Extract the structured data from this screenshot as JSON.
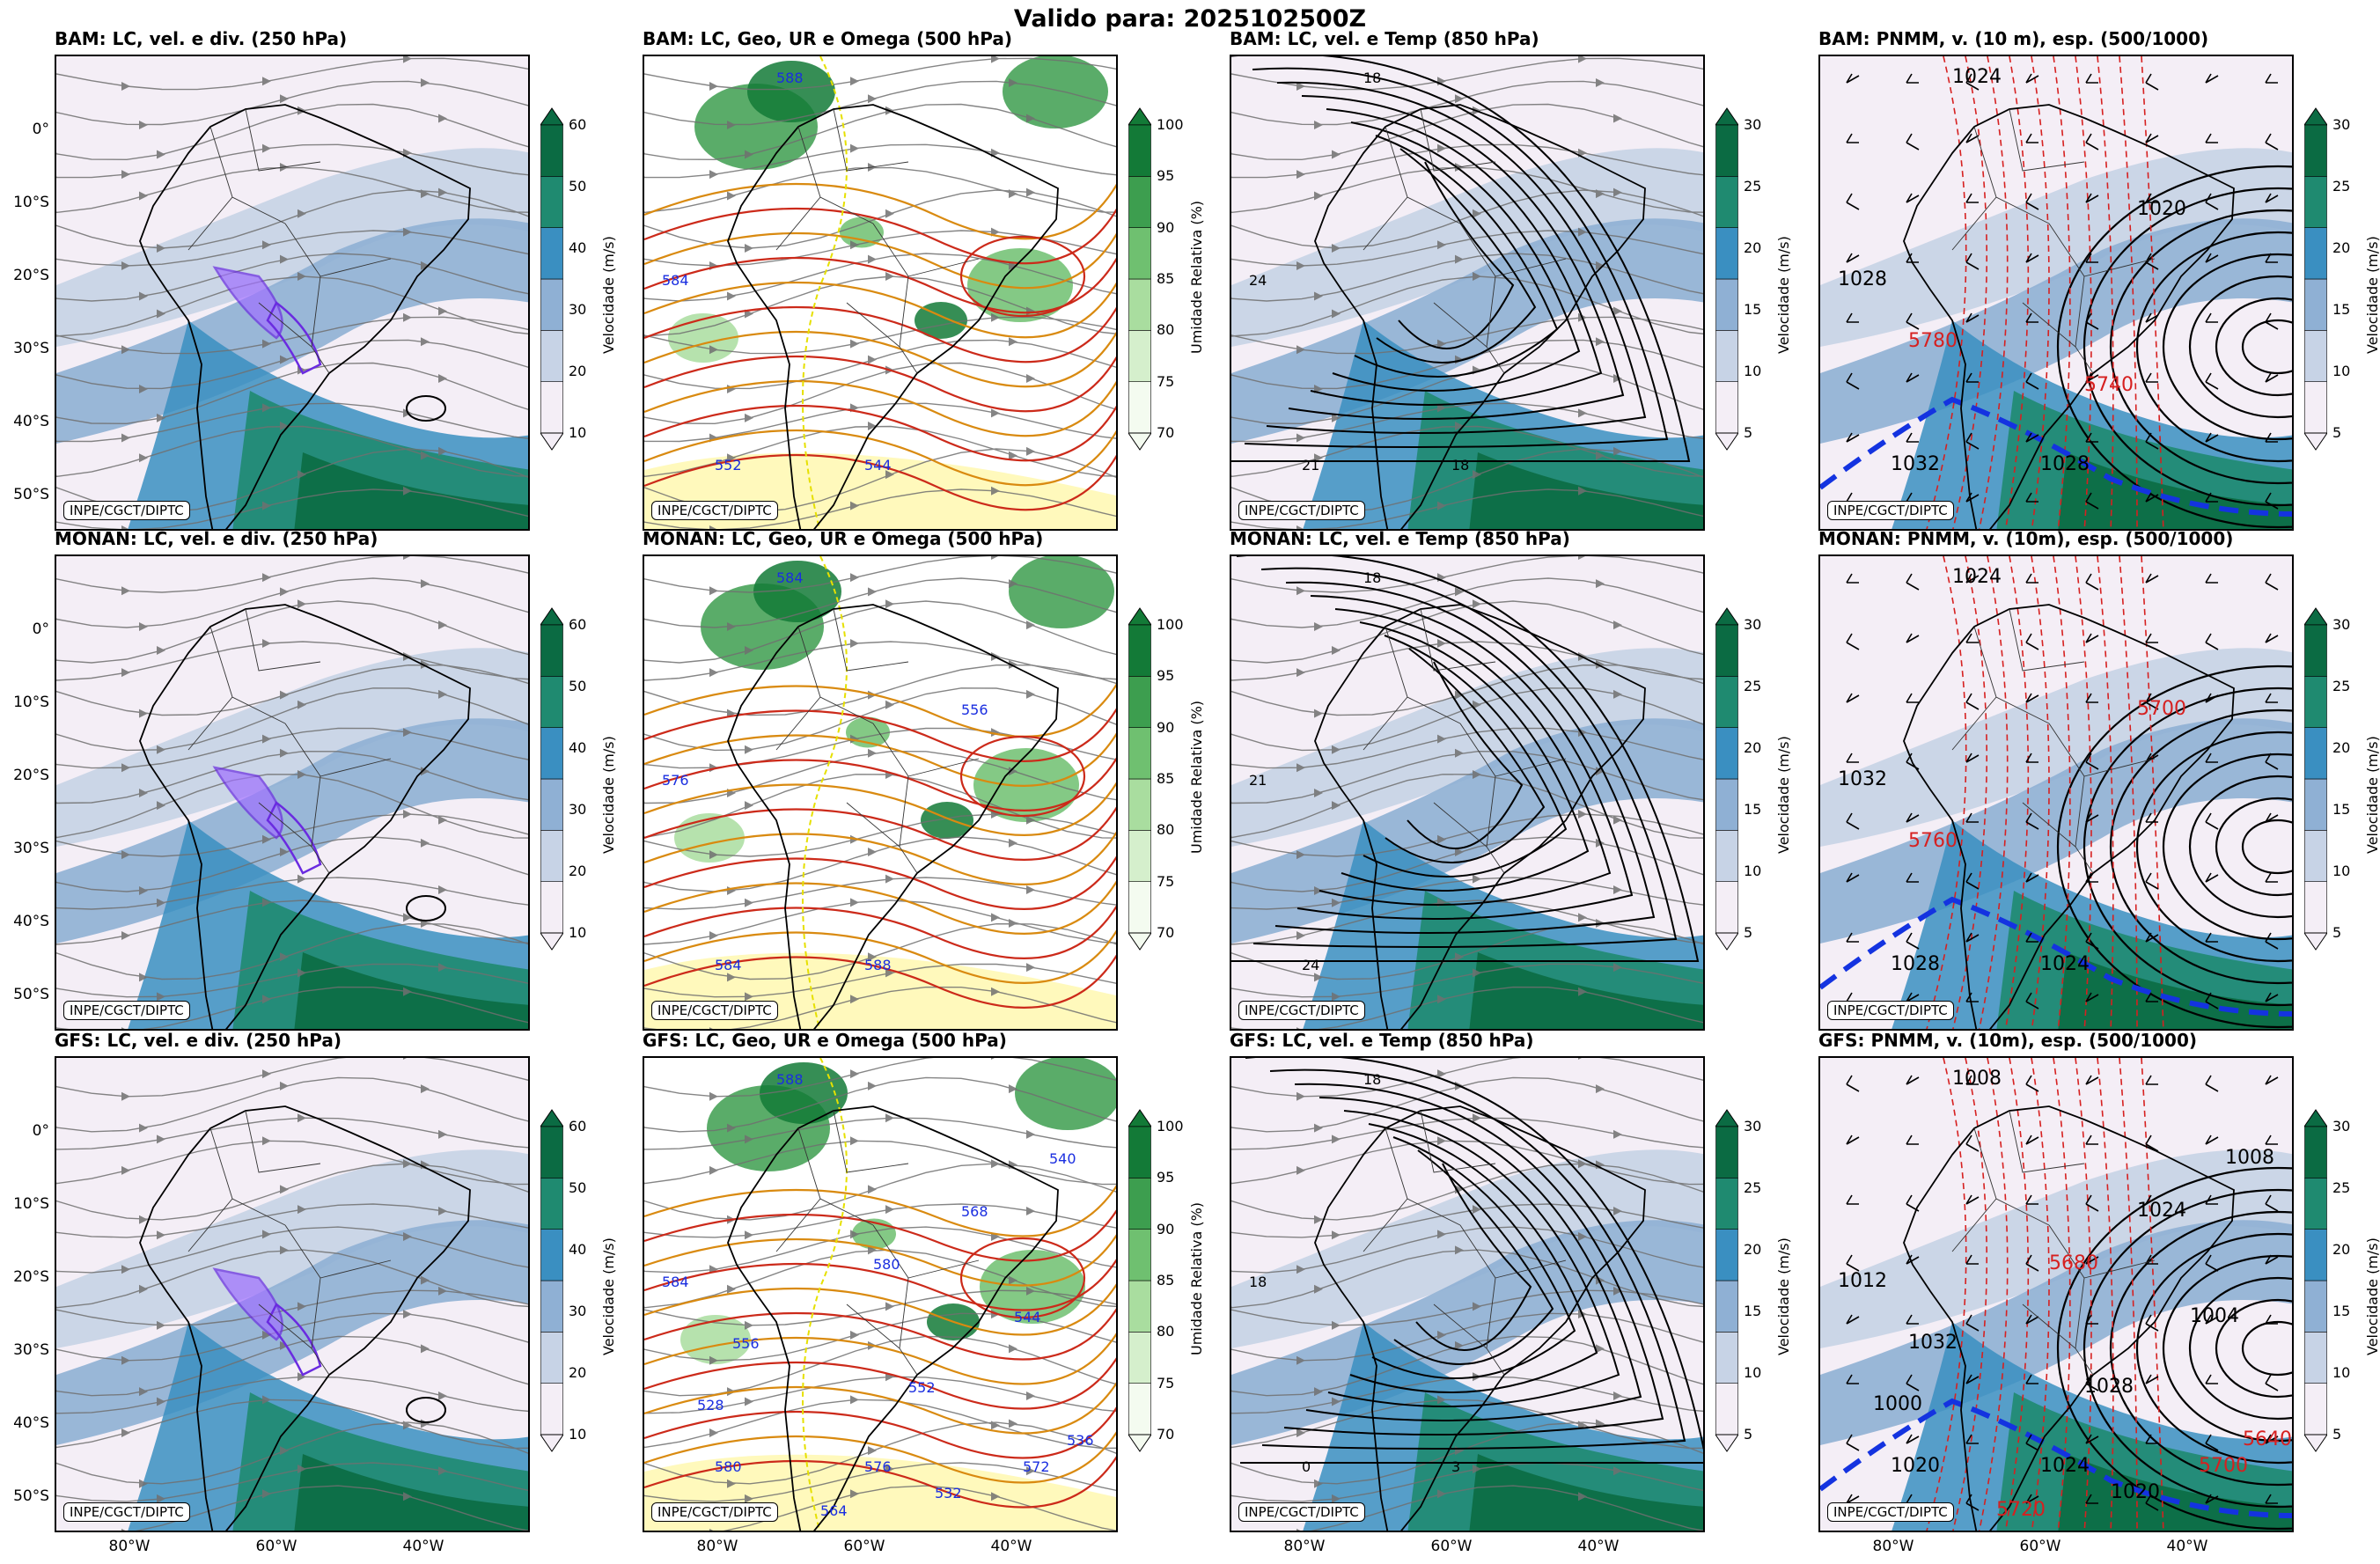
{
  "suptitle": "Valido para: 2025102500Z",
  "credit": "INPE/CGCT/DIPTC",
  "y_ticks": [
    "0°",
    "10°S",
    "20°S",
    "30°S",
    "40°S",
    "50°S"
  ],
  "x_ticks": [
    "80°W",
    "60°W",
    "40°W"
  ],
  "colorbars": {
    "speed250": {
      "label": "Velocidade (m/s)",
      "ticks": [
        "10",
        "20",
        "30",
        "40",
        "50",
        "60"
      ],
      "colors": [
        "#f4eef6",
        "#c7d3e6",
        "#8fb0d4",
        "#3a8fc1",
        "#1f8a70",
        "#0b6b43"
      ]
    },
    "rh500": {
      "label": "Umidade Relativa (%)",
      "ticks": [
        "70",
        "75",
        "80",
        "85",
        "90",
        "95",
        "100"
      ],
      "colors": [
        "#f4fbf0",
        "#d5efcc",
        "#a9dd9f",
        "#6fc070",
        "#3d9e4f",
        "#137a37"
      ]
    },
    "speed850": {
      "label": "Velocidade (m/s)",
      "ticks": [
        "5",
        "10",
        "15",
        "20",
        "25",
        "30"
      ],
      "colors": [
        "#f4eef6",
        "#c7d3e6",
        "#8fb0d4",
        "#3a8fc1",
        "#1f8a70",
        "#0b6b43"
      ]
    },
    "pnmm": {
      "label": "Velocidade (m/s)",
      "ticks": [
        "5",
        "10",
        "15",
        "20",
        "25",
        "30"
      ],
      "colors": [
        "#f4eef6",
        "#c7d3e6",
        "#8fb0d4",
        "#3a8fc1",
        "#1f8a70",
        "#0b6b43"
      ]
    }
  },
  "panels": [
    {
      "title": "BAM: LC, vel. e div. (250 hPa)",
      "type": "speed250"
    },
    {
      "title": "BAM: LC, Geo, UR e Omega (500 hPa)",
      "type": "rh500"
    },
    {
      "title": "BAM: LC, vel. e Temp (850 hPa)",
      "type": "speed850"
    },
    {
      "title": "BAM: PNMM, v. (10 m), esp. (500/1000)",
      "type": "pnmm"
    },
    {
      "title": "MONAN: LC, vel. e div. (250 hPa)",
      "type": "speed250"
    },
    {
      "title": "MONAN: LC, Geo, UR e Omega (500 hPa)",
      "type": "rh500"
    },
    {
      "title": "MONAN: LC, vel. e Temp (850 hPa)",
      "type": "speed850"
    },
    {
      "title": "MONAN: PNMM, v. (10m), esp. (500/1000)",
      "type": "pnmm"
    },
    {
      "title": "GFS: LC, vel. e div. (250 hPa)",
      "type": "speed250"
    },
    {
      "title": "GFS: LC, Geo, UR e Omega (500 hPa)",
      "type": "rh500"
    },
    {
      "title": "GFS: LC, vel. e Temp (850 hPa)",
      "type": "speed850"
    },
    {
      "title": "GFS: PNMM, v. (10m), esp. (500/1000)",
      "type": "pnmm"
    }
  ],
  "contour_labels": {
    "BAM-500": [
      "588",
      "584",
      "552",
      "544"
    ],
    "MONAN-500": [
      "584",
      "576",
      "584",
      "588",
      "556"
    ],
    "GFS-500": [
      "588",
      "584",
      "580",
      "576",
      "568",
      "556",
      "552",
      "544",
      "540",
      "528",
      "532",
      "564",
      "572",
      "580",
      "536"
    ],
    "BAM-850": [
      "18",
      "24",
      "21",
      "18"
    ],
    "MONAN-850": [
      "18",
      "21",
      "24"
    ],
    "GFS-850": [
      "18",
      "18",
      "0",
      "3"
    ],
    "BAM-pnmm": [
      "1024",
      "1028",
      "1032",
      "1028",
      "1020",
      "5780",
      "5740"
    ],
    "MONAN-pnmm": [
      "1024",
      "1032",
      "1028",
      "1024",
      "5700",
      "5760"
    ],
    "GFS-pnmm": [
      "1008",
      "1012",
      "1020",
      "1024",
      "1024",
      "1032",
      "1028",
      "1004",
      "1008",
      "1000",
      "1020",
      "5720",
      "5700",
      "5680",
      "5640"
    ]
  }
}
